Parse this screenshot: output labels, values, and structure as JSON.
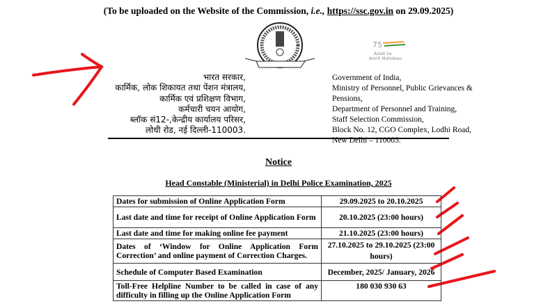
{
  "header": {
    "prefix": "(To be uploaded on the Website of the Commission, ",
    "ie": "i.e.,",
    "link": "https://ssc.gov.in",
    "suffix": " on 29.09.2025)"
  },
  "logos": {
    "ssc_seal": "Staff Selection Commission",
    "amrit": "Azadi ka Amrit Mahotsav"
  },
  "hindi_address": [
    "भारत सरकार,",
    "कार्मिक, लोक शिकायत तथा पेंशन मंत्रालय,",
    "कार्मिक एवं प्रशिक्षण विभाग,",
    "कर्मचारी चयन आयोग,",
    "ब्लॉक सं12-,केन्द्रीय कार्यालय परिसर,",
    "लोधी रोड, नई दिल्ली-110003."
  ],
  "english_address": [
    "Government of India,",
    "Ministry of Personnel, Public Grievances &",
    "Pensions,",
    "Department of Personnel and Training,",
    "Staff Selection Commission,",
    "Block No. 12, CGO Complex, Lodhi Road,",
    "New Delhi – 110003."
  ],
  "notice_title": "Notice",
  "subtitle": "Head Constable (Ministerial) in Delhi Police Examination, 2025",
  "table": [
    {
      "event": "Dates for submission of Online Application Form",
      "date": "29.09.2025 to 20.10.2025"
    },
    {
      "event": "Last date and time for receipt of Online Application Form",
      "date": "20.10.2025 (23:00 hours)"
    },
    {
      "event": "Last date and time for making online fee payment",
      "date": "21.10.2025 (23:00 hours)"
    },
    {
      "event": "Dates of ‘Window for Online Application Form Correction’ and online payment of Correction Charges.",
      "date": "27.10.2025 to 29.10.2025 (23:00 hours)"
    },
    {
      "event": "Schedule of Computer Based Examination",
      "date": "December, 2025/ January, 2026"
    },
    {
      "event": "Toll-Free Helpline Number to be called in case of any difficulty in filling up the Online Application Form",
      "date": "180 030 930 63"
    }
  ],
  "annotation_color": "#e8151b"
}
